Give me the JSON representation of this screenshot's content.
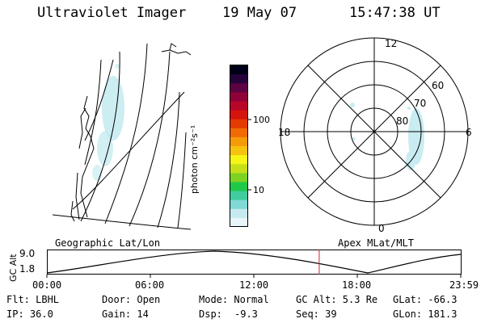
{
  "header": {
    "title": "Ultraviolet Imager",
    "date": "19 May 07",
    "time": "15:47:38 UT"
  },
  "colorbar": {
    "label": "photon cm⁻²s⁻¹",
    "ticks": [
      "100",
      "10"
    ],
    "colors": [
      "#e8f6fb",
      "#c7eaf1",
      "#7fd9d4",
      "#40cc9e",
      "#1ec94a",
      "#7ed322",
      "#c5e019",
      "#f6f516",
      "#f6c30f",
      "#f59b08",
      "#f06b04",
      "#e53a02",
      "#d6140d",
      "#b8052a",
      "#8f0138",
      "#5d0243",
      "#26023a",
      "#000018"
    ]
  },
  "left_map": {
    "label": "Geographic Lat/Lon"
  },
  "polar": {
    "label": "Apex MLat/MLT",
    "mlt_labels": {
      "top": "12",
      "left": "18",
      "right": "6",
      "bottom": "0"
    },
    "lat_labels": [
      "60",
      "70",
      "80"
    ]
  },
  "altitude_plot": {
    "ylabel": "GC Alt",
    "yticks": [
      "9.0",
      "1.8"
    ],
    "xticks": [
      "00:00",
      "06:00",
      "12:00",
      "18:00",
      "23:59"
    ],
    "current_time_fraction": 0.658
  },
  "info": {
    "filter": "Flt: LBHL",
    "door": "Door: Open",
    "mode": "Mode: Normal",
    "gc_alt": "GC Alt: 5.3 Re",
    "glat": "GLat: -66.3",
    "ip": "IP: 36.0",
    "gain": "Gain: 14",
    "dsp_label": "Dsp:",
    "dsp_value": "-9.3",
    "seq": "Seq: 39",
    "glon": "GLon: 181.3"
  }
}
